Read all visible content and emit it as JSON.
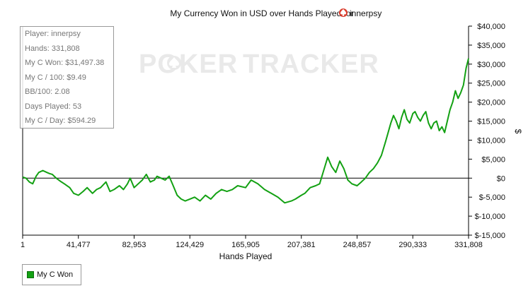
{
  "chart_data": {
    "type": "line",
    "title": "My Currency Won in USD over Hands Played for",
    "title_player": "innerpsy",
    "watermark": {
      "left": "POKER",
      "right": "TRACKER"
    },
    "xlabel": "Hands Played",
    "ylabel": "$",
    "xlim": [
      1,
      331808
    ],
    "ylim": [
      -15000,
      40000
    ],
    "x_ticks": [
      1,
      41477,
      82953,
      124429,
      165905,
      207381,
      248857,
      290333,
      331808
    ],
    "x_tick_labels": [
      "1",
      "41,477",
      "82,953",
      "124,429",
      "165,905",
      "207,381",
      "248,857",
      "290,333",
      "331,808"
    ],
    "y_ticks": [
      40000,
      35000,
      30000,
      25000,
      20000,
      15000,
      10000,
      5000,
      0,
      -5000,
      -10000,
      -15000
    ],
    "y_tick_labels": [
      "$40,000",
      "$35,000",
      "$30,000",
      "$25,000",
      "$20,000",
      "$15,000",
      "$10,000",
      "$5,000",
      "$0",
      "$-5,000",
      "$-10,000",
      "$-15,000"
    ],
    "grid": false,
    "legend_position": "bottom-left",
    "series": [
      {
        "name": "My C Won",
        "color": "#13a113",
        "x": [
          1,
          2500,
          5000,
          7500,
          10000,
          12000,
          15000,
          18000,
          20000,
          22000,
          25000,
          28000,
          31000,
          35000,
          38000,
          41477,
          45000,
          48000,
          52000,
          55000,
          58000,
          62000,
          65000,
          68000,
          72000,
          75000,
          78000,
          80000,
          82953,
          86000,
          89000,
          92000,
          95000,
          98000,
          100000,
          103000,
          106000,
          109000,
          112000,
          115000,
          118000,
          121000,
          124429,
          128000,
          132000,
          136000,
          140000,
          144000,
          148000,
          152000,
          156000,
          160000,
          165905,
          170000,
          175000,
          180000,
          185000,
          190000,
          195000,
          200000,
          203000,
          207381,
          210000,
          214000,
          218000,
          221000,
          224000,
          227000,
          230000,
          233000,
          236000,
          239000,
          242000,
          245000,
          248857,
          252000,
          255000,
          258000,
          261000,
          264000,
          267000,
          270000,
          272000,
          274000,
          276000,
          278000,
          280000,
          282000,
          284000,
          286000,
          288000,
          290333,
          292000,
          294000,
          296000,
          298000,
          300000,
          302000,
          304000,
          306000,
          308000,
          310000,
          312000,
          314000,
          316000,
          318000,
          320000,
          322000,
          324000,
          326000,
          328000,
          330000,
          331808
        ],
        "values": [
          300,
          0,
          -1000,
          -1500,
          500,
          1500,
          2000,
          1500,
          1200,
          1000,
          0,
          -800,
          -1500,
          -2500,
          -4000,
          -4500,
          -3500,
          -2500,
          -4000,
          -3000,
          -2500,
          -1000,
          -3500,
          -3000,
          -2000,
          -3000,
          -1500,
          0,
          -2500,
          -1500,
          -500,
          1000,
          -1000,
          -500,
          500,
          0,
          -500,
          500,
          -2000,
          -4500,
          -5500,
          -6000,
          -5500,
          -5000,
          -6000,
          -4500,
          -5500,
          -4000,
          -3000,
          -3500,
          -3000,
          -2000,
          -2500,
          -500,
          -1500,
          -3000,
          -4000,
          -5000,
          -6500,
          -6000,
          -5500,
          -4500,
          -4000,
          -2500,
          -2000,
          -1500,
          2000,
          5500,
          3000,
          1500,
          4500,
          2500,
          -500,
          -1500,
          -2000,
          -1000,
          0,
          1500,
          2500,
          4000,
          6000,
          9500,
          12000,
          14500,
          16500,
          15000,
          13000,
          16000,
          18000,
          15500,
          14500,
          17000,
          17500,
          16000,
          15000,
          16500,
          17500,
          14500,
          13000,
          14500,
          15000,
          12500,
          13500,
          12000,
          15000,
          18000,
          20000,
          23000,
          21000,
          22500,
          24500,
          29000,
          31500
        ]
      }
    ]
  },
  "stats": [
    "Player: innerpsy",
    "Hands: 331,808",
    "My C Won: $31,497.38",
    "My C / 100: $9.49",
    "BB/100: 2.08",
    "Days Played: 53",
    "My C / Day: $594.29"
  ],
  "legend": {
    "label": "My C Won",
    "color": "#13a113"
  }
}
